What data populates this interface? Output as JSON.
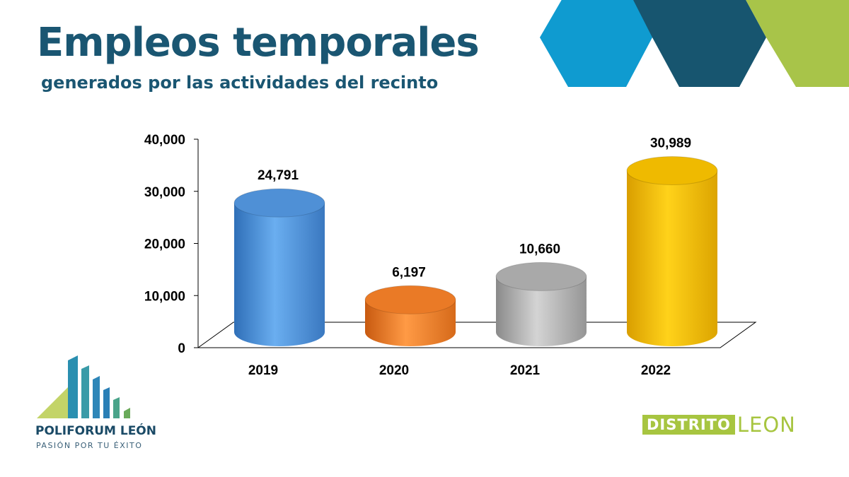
{
  "header": {
    "title": "Empleos temporales",
    "subtitle": "generados por las actividades del recinto"
  },
  "colors": {
    "hex_light_blue": "#0f9bd0",
    "hex_dark_blue": "#17556f",
    "hex_green": "#a8c449"
  },
  "chart_data": {
    "type": "bar",
    "style": "3d-cylinder",
    "categories": [
      "2019",
      "2020",
      "2021",
      "2022"
    ],
    "values": [
      24791,
      6197,
      10660,
      30989
    ],
    "data_labels": [
      "24,791",
      "6,197",
      "10,660",
      "30,989"
    ],
    "bar_colors": [
      "#4f90d6",
      "#ea7a26",
      "#a9a9a9",
      "#efba00"
    ],
    "yticks": [
      "0",
      "10,000",
      "20,000",
      "30,000",
      "40,000"
    ],
    "ylim": [
      0,
      40000
    ],
    "grid": false,
    "legend": "none"
  },
  "logos": {
    "poliforum_name": "POLIFORUM LEÓN",
    "poliforum_tagline": "PASIÓN POR TU ÉXITO",
    "distrito_part1": "DISTRITO",
    "distrito_part2": "LEON"
  }
}
